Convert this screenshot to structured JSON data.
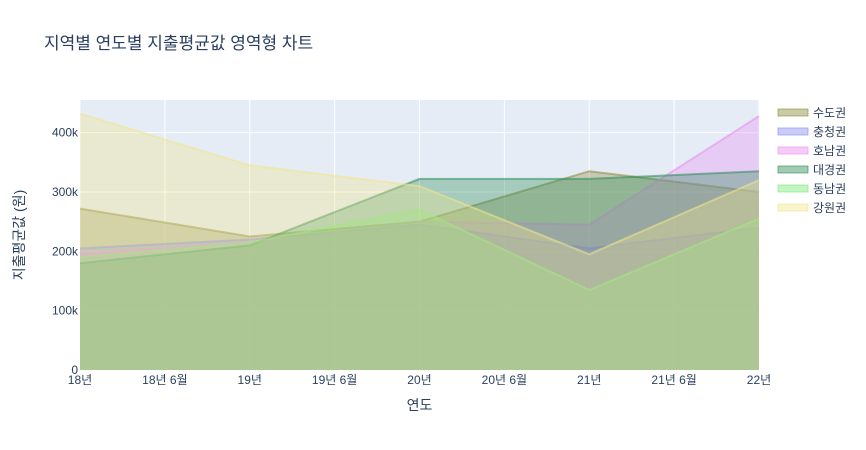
{
  "chart_data": {
    "type": "area",
    "title": "지역별 연도별 지출평균값 영역형 차트",
    "xlabel": "연도",
    "ylabel": "지출평균값 (원)",
    "x": [
      "18년",
      "19년",
      "20년",
      "21년",
      "22년"
    ],
    "x_tick_labels": [
      "18년",
      "18년 6월",
      "19년",
      "19년 6월",
      "20년",
      "20년 6월",
      "21년",
      "21년 6월",
      "22년"
    ],
    "y_tick_labels": [
      "0",
      "100k",
      "200k",
      "300k",
      "400k"
    ],
    "ylim": [
      0,
      455000
    ],
    "grid": true,
    "legend_position": "right",
    "series": [
      {
        "name": "수도권",
        "values": [
          272000,
          225000,
          250000,
          335000,
          300000
        ],
        "color": "#8a8a3c"
      },
      {
        "name": "충청권",
        "values": [
          205000,
          220000,
          245000,
          205000,
          240000
        ],
        "color": "#8c8cf0"
      },
      {
        "name": "호남권",
        "values": [
          195000,
          215000,
          250000,
          245000,
          428000
        ],
        "color": "#e88ef0"
      },
      {
        "name": "대경권",
        "values": [
          180000,
          210000,
          322000,
          322000,
          335000
        ],
        "color": "#2e8b57"
      },
      {
        "name": "동남권",
        "values": [
          190000,
          215000,
          270000,
          135000,
          255000
        ],
        "color": "#7ae87a"
      },
      {
        "name": "강원권",
        "values": [
          432000,
          345000,
          310000,
          195000,
          320000
        ],
        "color": "#f0e68c"
      }
    ]
  }
}
